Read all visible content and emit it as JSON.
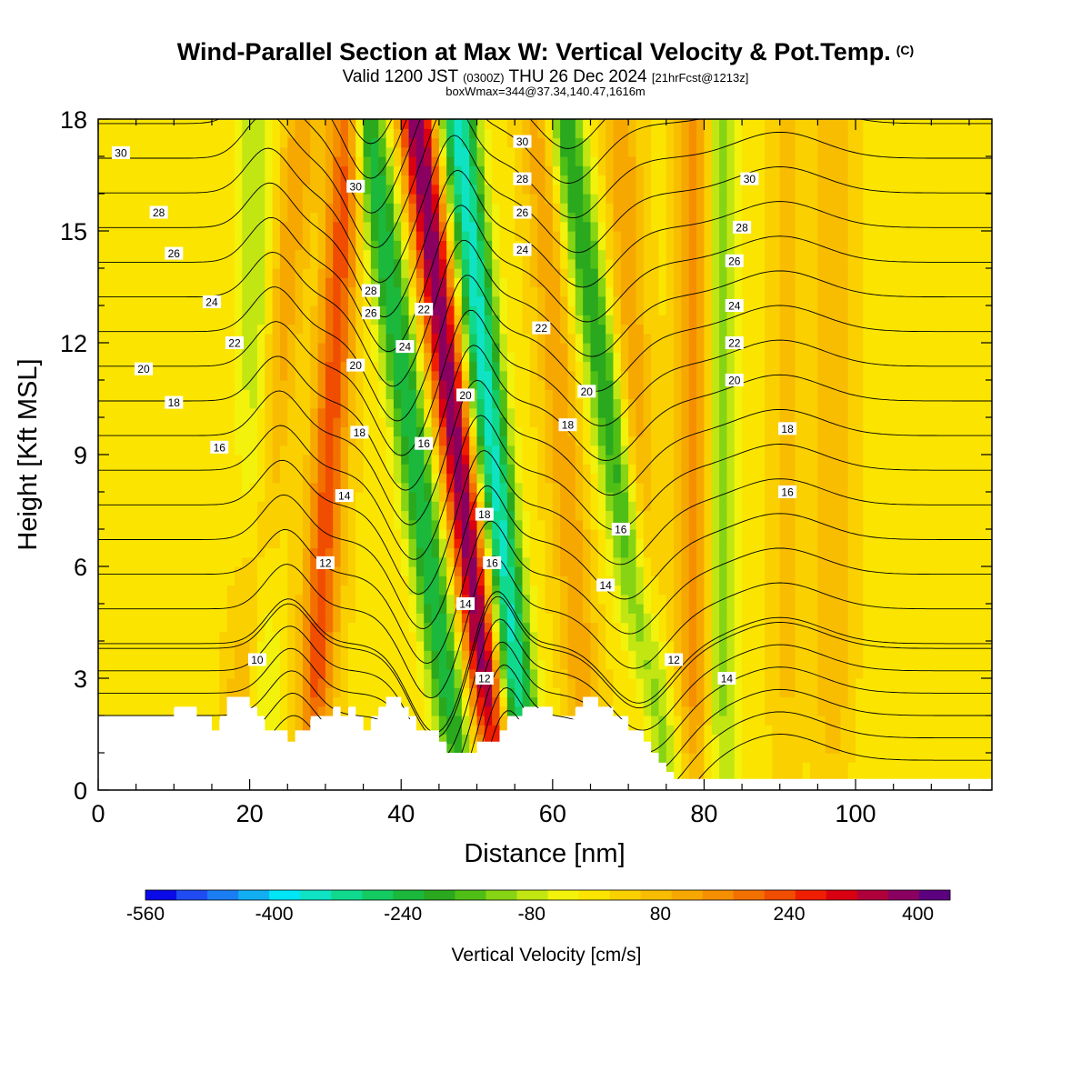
{
  "title": {
    "main": "Wind-Parallel Section at Max W: Vertical Velocity & Pot.Temp.",
    "copyright": "(C)",
    "valid_prefix": "Valid 1200 JST",
    "utc": "(0300Z)",
    "valid_date": "THU 26 Dec 2024",
    "forecast": "[21hrFcst@1213z]",
    "boxline": "boxWmax=344@37.34,140.47,1616m"
  },
  "chart_data": {
    "type": "heatmap",
    "xlabel": "Distance [nm]",
    "ylabel": "Height [Kft MSL]",
    "xlim": [
      0,
      118
    ],
    "ylim": [
      0,
      18
    ],
    "xticks": [
      0,
      20,
      40,
      60,
      80,
      100
    ],
    "yticks": [
      0,
      3,
      6,
      9,
      12,
      15,
      18
    ],
    "grid": false,
    "colorbar": {
      "label": "Vertical Velocity [cm/s]",
      "tick_labels": [
        "-560",
        "-400",
        "-240",
        "-80",
        "80",
        "240",
        "400"
      ],
      "tick_values": [
        -560,
        -400,
        -240,
        -80,
        80,
        240,
        400
      ],
      "range": [
        -560,
        440
      ],
      "step": 40,
      "colors": [
        "#0a0ae8",
        "#1f4cf2",
        "#1a7df2",
        "#12aef2",
        "#00e6f7",
        "#0fe3c4",
        "#10d98e",
        "#14cb62",
        "#1bb83c",
        "#2aa81e",
        "#4fbf16",
        "#86d414",
        "#c2e612",
        "#f2f20d",
        "#fbe500",
        "#fad000",
        "#f8bd00",
        "#f7a800",
        "#f58f00",
        "#f27000",
        "#f04d00",
        "#f01e00",
        "#d90012",
        "#b0003c",
        "#8a0060",
        "#5c0080"
      ]
    },
    "series": [
      {
        "name": "Vertical Velocity",
        "ridges": [
          {
            "x0": 20.5,
            "x1": 21.5,
            "value": -110
          },
          {
            "x0": 27,
            "x1": 18,
            "value": 120
          },
          {
            "x0": 33,
            "x1": 28,
            "value": 230
          },
          {
            "x0": 35.5,
            "x1": 48,
            "value": -270
          },
          {
            "x0": 42,
            "x1": 53,
            "value": 410
          },
          {
            "x0": 47.5,
            "x1": 56.5,
            "value": -380
          },
          {
            "x0": 58,
            "x1": 65,
            "value": 120
          },
          {
            "x0": 61.5,
            "x1": 75,
            "value": -230
          },
          {
            "x0": 69,
            "x1": 73,
            "value": 120
          },
          {
            "x0": 79,
            "x1": 79,
            "value": 180
          },
          {
            "x0": 82,
            "x1": 82,
            "value": -150
          },
          {
            "x0": 91,
            "x1": 91,
            "value": 60
          },
          {
            "x0": 97,
            "x1": 97,
            "value": 90
          }
        ]
      },
      {
        "name": "Potential Temperature",
        "units": "C",
        "contour_interval": 1,
        "labels": [
          {
            "x": 3,
            "y": 17.1,
            "value": "30"
          },
          {
            "x": 8,
            "y": 15.5,
            "value": "28"
          },
          {
            "x": 10,
            "y": 14.4,
            "value": "26"
          },
          {
            "x": 15,
            "y": 13.1,
            "value": "24"
          },
          {
            "x": 18,
            "y": 12.0,
            "value": "22"
          },
          {
            "x": 6,
            "y": 11.3,
            "value": "20"
          },
          {
            "x": 10,
            "y": 10.4,
            "value": "18"
          },
          {
            "x": 16,
            "y": 9.2,
            "value": "16"
          },
          {
            "x": 30,
            "y": 6.1,
            "value": "12"
          },
          {
            "x": 21,
            "y": 3.5,
            "value": "10"
          },
          {
            "x": 34,
            "y": 16.2,
            "value": "30"
          },
          {
            "x": 36,
            "y": 13.4,
            "value": "28"
          },
          {
            "x": 36,
            "y": 12.8,
            "value": "26"
          },
          {
            "x": 34,
            "y": 11.4,
            "value": "20"
          },
          {
            "x": 34.5,
            "y": 9.6,
            "value": "18"
          },
          {
            "x": 32.5,
            "y": 7.9,
            "value": "14"
          },
          {
            "x": 43,
            "y": 12.9,
            "value": "22"
          },
          {
            "x": 40.5,
            "y": 11.9,
            "value": "24"
          },
          {
            "x": 43,
            "y": 9.3,
            "value": "16"
          },
          {
            "x": 48.5,
            "y": 10.6,
            "value": "20"
          },
          {
            "x": 51,
            "y": 7.4,
            "value": "18"
          },
          {
            "x": 52,
            "y": 6.1,
            "value": "16"
          },
          {
            "x": 48.5,
            "y": 5.0,
            "value": "14"
          },
          {
            "x": 51,
            "y": 3.0,
            "value": "12"
          },
          {
            "x": 56,
            "y": 17.4,
            "value": "30"
          },
          {
            "x": 56,
            "y": 16.4,
            "value": "28"
          },
          {
            "x": 56,
            "y": 15.5,
            "value": "26"
          },
          {
            "x": 56,
            "y": 14.5,
            "value": "24"
          },
          {
            "x": 58.5,
            "y": 12.4,
            "value": "22"
          },
          {
            "x": 64.5,
            "y": 10.7,
            "value": "20"
          },
          {
            "x": 62,
            "y": 9.8,
            "value": "18"
          },
          {
            "x": 69,
            "y": 7.0,
            "value": "16"
          },
          {
            "x": 67,
            "y": 5.5,
            "value": "14"
          },
          {
            "x": 76,
            "y": 3.5,
            "value": "12"
          },
          {
            "x": 83,
            "y": 3.0,
            "value": "14"
          },
          {
            "x": 86,
            "y": 16.4,
            "value": "30"
          },
          {
            "x": 85,
            "y": 15.1,
            "value": "28"
          },
          {
            "x": 84,
            "y": 14.2,
            "value": "26"
          },
          {
            "x": 84,
            "y": 13.0,
            "value": "24"
          },
          {
            "x": 84,
            "y": 12.0,
            "value": "22"
          },
          {
            "x": 84,
            "y": 11.0,
            "value": "20"
          },
          {
            "x": 91,
            "y": 9.7,
            "value": "18"
          },
          {
            "x": 91,
            "y": 8.0,
            "value": "16"
          }
        ]
      }
    ],
    "terrain": [
      [
        0,
        1.9
      ],
      [
        4,
        1.9
      ],
      [
        10,
        1.9
      ],
      [
        10,
        2.2
      ],
      [
        13,
        2.2
      ],
      [
        13,
        1.9
      ],
      [
        15,
        1.9
      ],
      [
        15,
        1.6
      ],
      [
        16,
        1.6
      ],
      [
        16,
        1.9
      ],
      [
        17,
        1.9
      ],
      [
        17,
        2.5
      ],
      [
        20,
        2.5
      ],
      [
        20,
        2.2
      ],
      [
        21,
        2.2
      ],
      [
        21,
        1.9
      ],
      [
        22,
        1.9
      ],
      [
        22,
        1.6
      ],
      [
        25,
        1.6
      ],
      [
        25,
        1.3
      ],
      [
        26,
        1.3
      ],
      [
        26,
        1.6
      ],
      [
        28,
        1.6
      ],
      [
        28,
        1.9
      ],
      [
        30,
        1.9
      ],
      [
        30,
        2.2
      ],
      [
        30,
        1.9
      ],
      [
        31,
        1.9
      ],
      [
        31,
        2.2
      ],
      [
        32,
        2.2
      ],
      [
        32,
        1.9
      ],
      [
        33,
        1.9
      ],
      [
        33,
        2.2
      ],
      [
        34,
        2.2
      ],
      [
        34,
        1.9
      ],
      [
        35,
        1.9
      ],
      [
        35,
        1.6
      ],
      [
        36,
        1.6
      ],
      [
        36,
        1.9
      ],
      [
        37,
        1.9
      ],
      [
        37,
        2.2
      ],
      [
        38,
        2.2
      ],
      [
        38,
        2.5
      ],
      [
        40,
        2.5
      ],
      [
        40,
        2.2
      ],
      [
        41,
        2.2
      ],
      [
        41,
        1.9
      ],
      [
        42,
        1.9
      ],
      [
        42,
        1.6
      ],
      [
        45,
        1.6
      ],
      [
        45,
        1.3
      ],
      [
        46,
        1.3
      ],
      [
        46,
        1.0
      ],
      [
        50,
        1.0
      ],
      [
        50,
        1.3
      ],
      [
        53,
        1.3
      ],
      [
        53,
        1.6
      ],
      [
        54,
        1.6
      ],
      [
        54,
        1.9
      ],
      [
        56,
        1.9
      ],
      [
        56,
        2.2
      ],
      [
        60,
        2.2
      ],
      [
        60,
        1.9
      ],
      [
        63,
        1.9
      ],
      [
        63,
        2.2
      ],
      [
        64,
        2.2
      ],
      [
        64,
        2.5
      ],
      [
        66,
        2.5
      ],
      [
        66,
        2.2
      ],
      [
        68,
        2.2
      ],
      [
        68,
        1.9
      ],
      [
        70,
        1.9
      ],
      [
        70,
        1.6
      ],
      [
        72,
        1.6
      ],
      [
        72,
        1.3
      ],
      [
        73,
        1.3
      ],
      [
        73,
        1.0
      ],
      [
        74,
        1.0
      ],
      [
        74,
        0.7
      ],
      [
        75,
        0.7
      ],
      [
        75,
        0.4
      ],
      [
        76,
        0.4
      ],
      [
        76,
        0.3
      ],
      [
        118,
        0.3
      ]
    ]
  }
}
